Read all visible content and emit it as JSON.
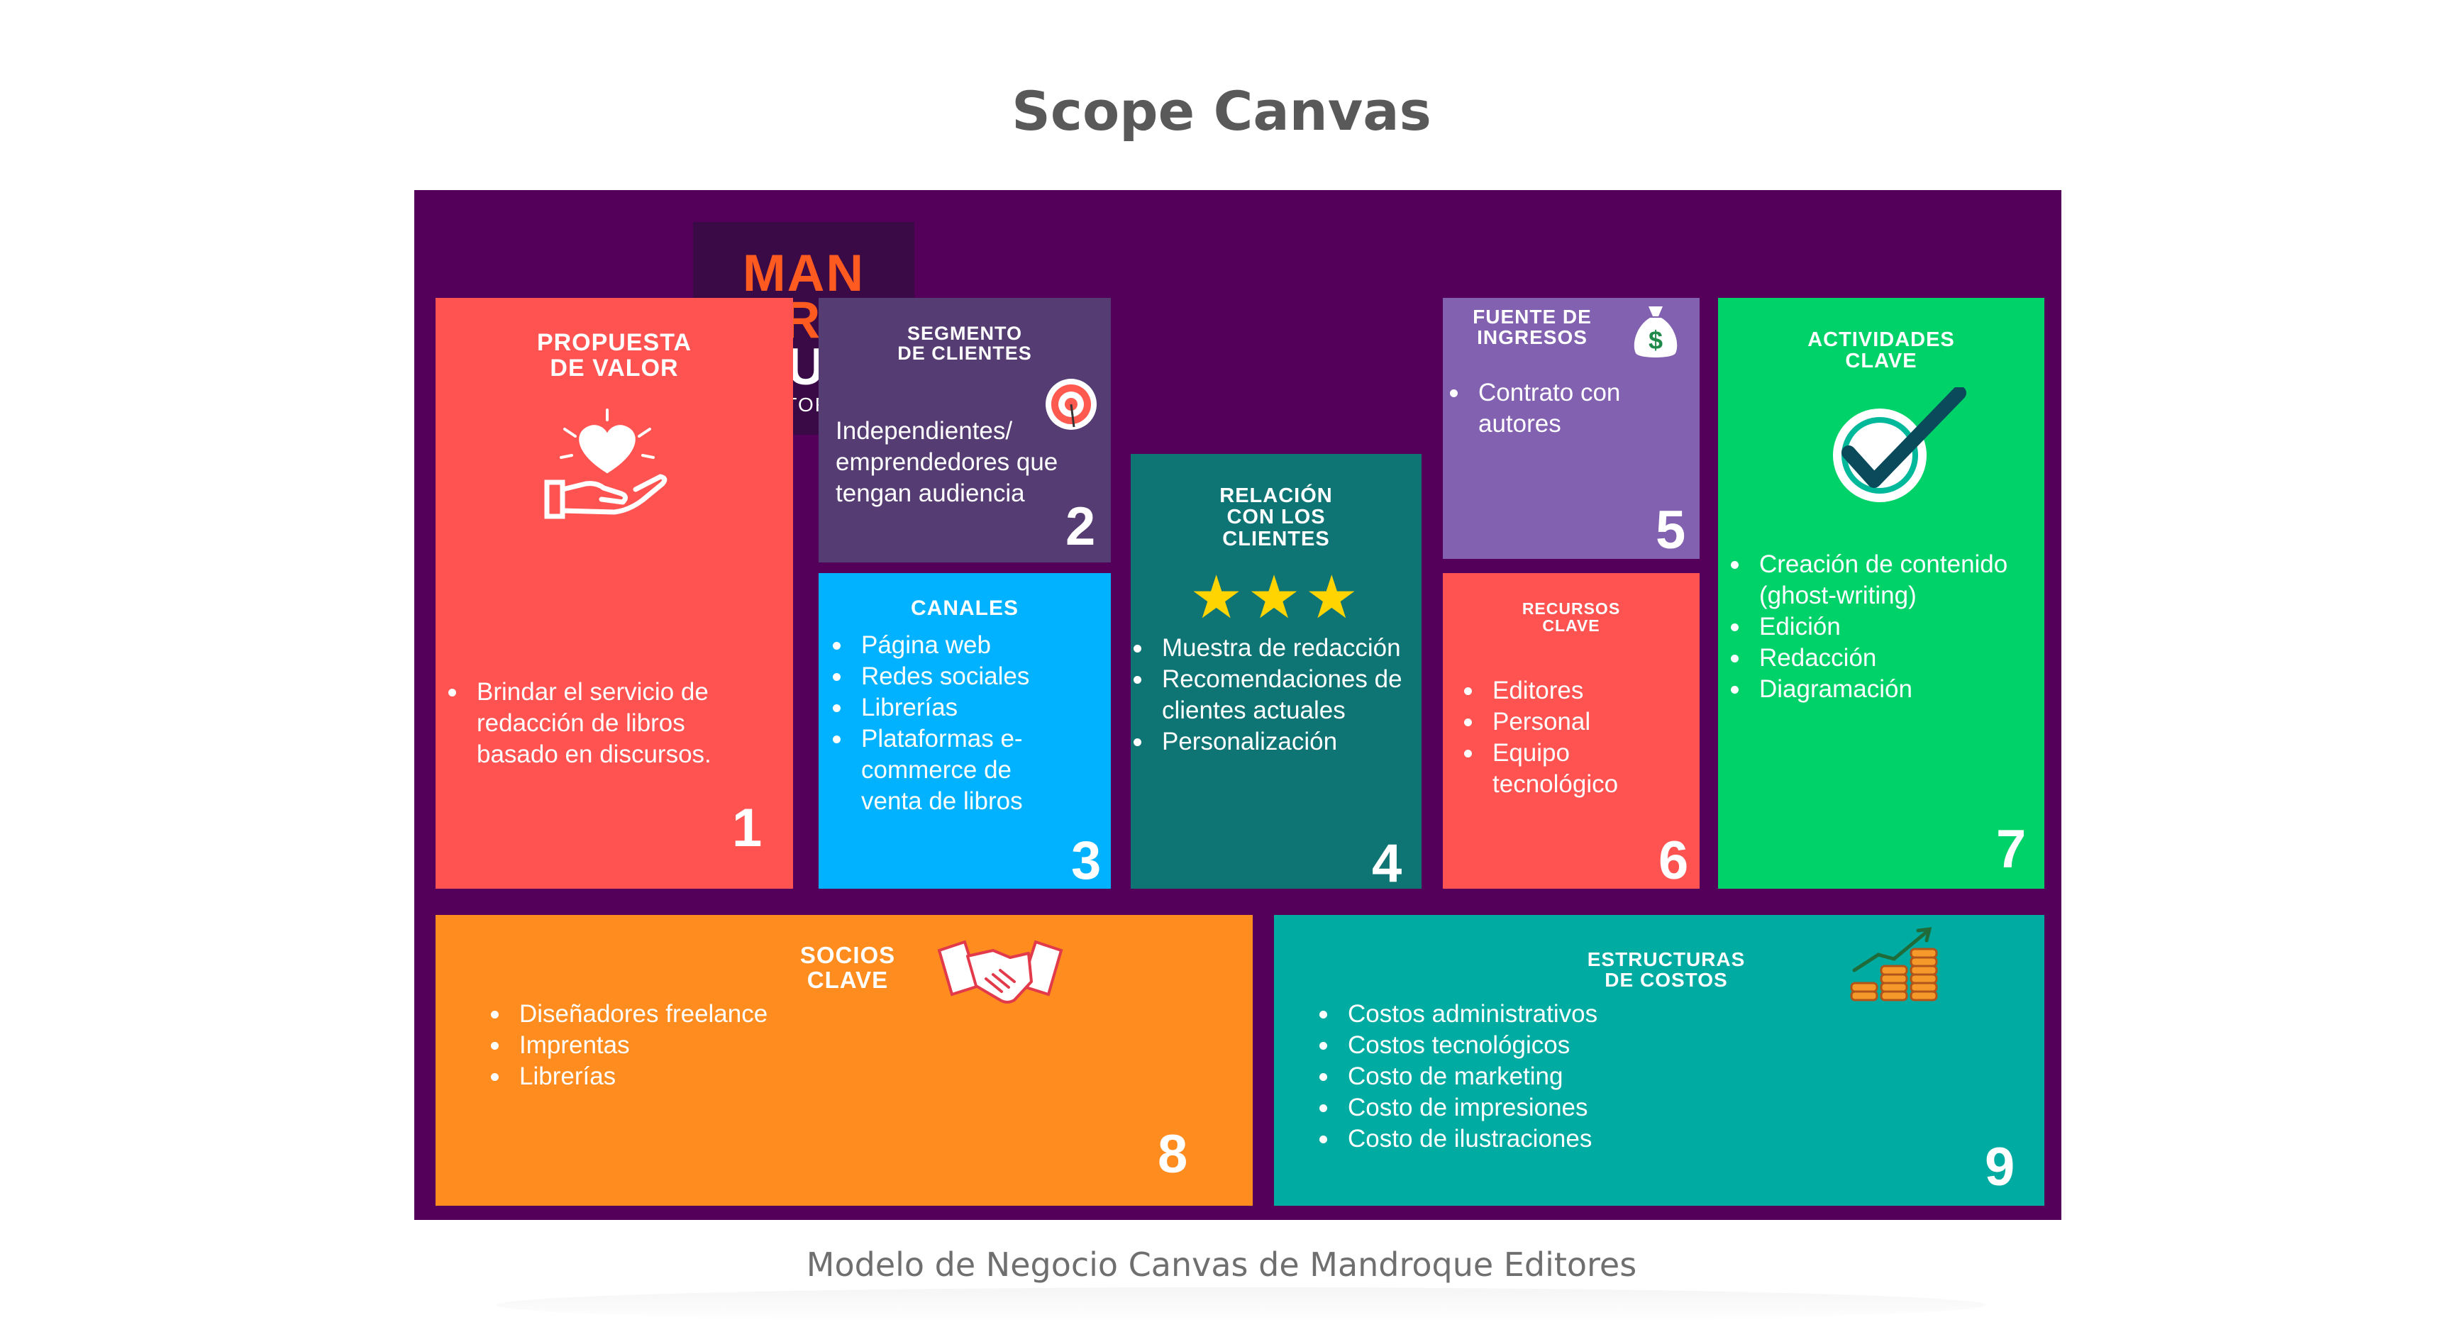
{
  "page_title": "Scope Canvas",
  "caption": "Modelo de Negocio Canvas de Mandroque Editores",
  "logo": {
    "line1": "MAN",
    "line2": "DRO",
    "line3": "QUE",
    "subtitle": "EDITORES"
  },
  "blocks": {
    "propuesta": {
      "title": "PROPUESTA\nDE VALOR",
      "number": "1",
      "icon": "heart-hand-icon",
      "items": [
        "Brindar el servicio de redacción de libros basado en discursos."
      ]
    },
    "segmento": {
      "title": "SEGMENTO\nDE CLIENTES",
      "number": "2",
      "icon": "target-icon",
      "text": "Independientes/ emprendedores que tengan audiencia"
    },
    "canales": {
      "title": "CANALES",
      "number": "3",
      "items": [
        "Página web",
        "Redes sociales",
        "Librerías",
        "Plataformas e-commerce de venta de libros"
      ]
    },
    "relacion": {
      "title": "RELACIÓN\nCON LOS\nCLIENTES",
      "number": "4",
      "icon": "stars-icon",
      "stars": "★★★",
      "items": [
        "Muestra de redacción",
        "Recomendaciones de clientes actuales",
        "Personalización"
      ]
    },
    "fuente": {
      "title": "FUENTE DE\nINGRESOS",
      "number": "5",
      "icon": "money-bag-icon",
      "items": [
        "Contrato con autores"
      ]
    },
    "recursos": {
      "title": "RECURSOS\nCLAVE",
      "number": "6",
      "items": [
        "Editores",
        "Personal",
        "Equipo tecnológico"
      ]
    },
    "actividades": {
      "title": "ACTIVIDADES\nCLAVE",
      "number": "7",
      "icon": "checkmark-icon",
      "items": [
        "Creación de contenido (ghost-writing)",
        "Edición",
        "Redacción",
        "Diagramación"
      ]
    },
    "socios": {
      "title": "SOCIOS\nCLAVE",
      "number": "8",
      "icon": "handshake-icon",
      "items": [
        "Diseñadores freelance",
        "Imprentas",
        "Librerías"
      ]
    },
    "costos": {
      "title": "ESTRUCTURAS\nDE COSTOS",
      "number": "9",
      "icon": "coins-growth-icon",
      "items": [
        "Costos administrativos",
        "Costos tecnológicos",
        "Costo de marketing",
        "Costo de impresiones",
        "Costo de ilustraciones"
      ]
    }
  },
  "colors": {
    "canvas_bg": "#54005a",
    "propuesta": "#fe5350",
    "segmento": "#553c73",
    "canales": "#00b2ff",
    "relacion": "#0f7474",
    "fuente": "#8261b0",
    "recursos": "#fe5350",
    "actividades": "#00d26a",
    "socios": "#ff8c1f",
    "costos": "#00aba2",
    "logo_orange": "#ff5a1f",
    "logo_bg": "#3a0a46"
  }
}
